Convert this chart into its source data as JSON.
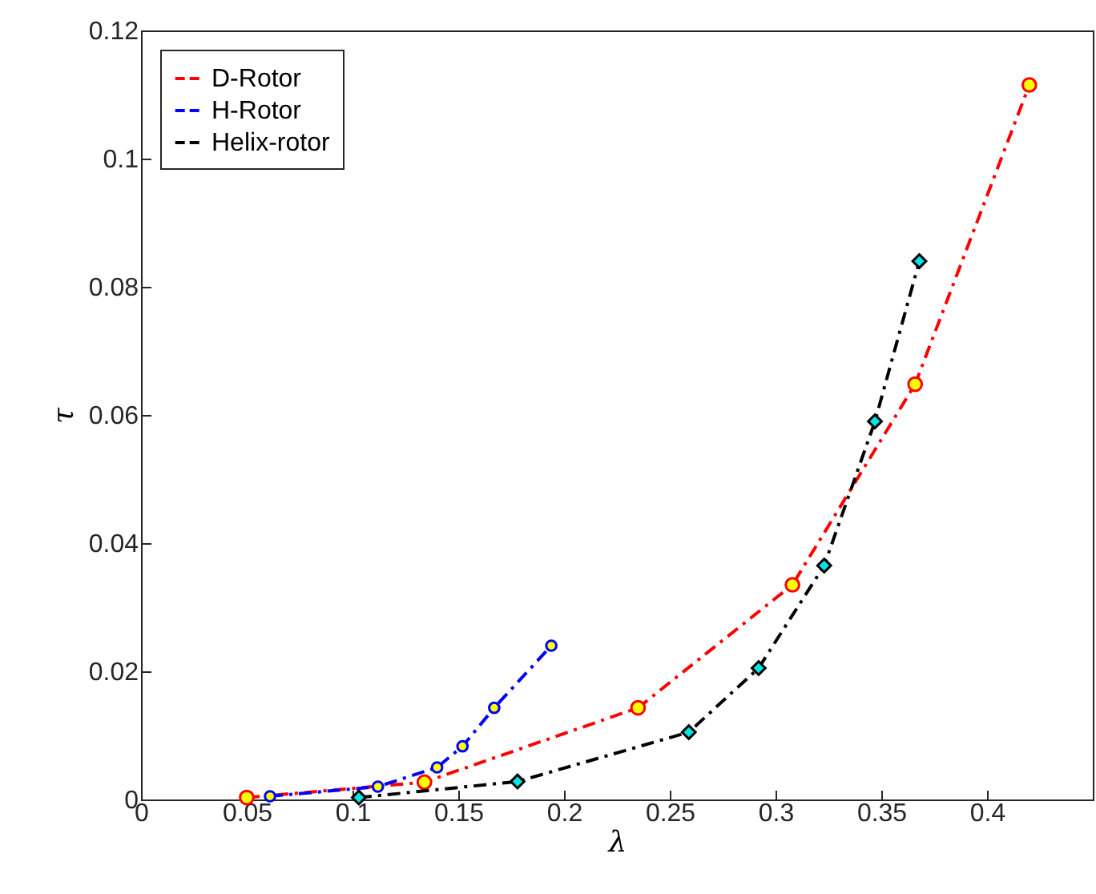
{
  "chart_data": {
    "type": "line",
    "xlabel": "λ",
    "ylabel": "τ",
    "xlim": [
      0,
      0.45
    ],
    "xticks": [
      0,
      0.05,
      0.1,
      0.15,
      0.2,
      0.25,
      0.3,
      0.35,
      0.4
    ],
    "ylim": [
      0,
      0.12
    ],
    "yticks": [
      0,
      0.02,
      0.04,
      0.06,
      0.08,
      0.1,
      0.12
    ],
    "legend": "top left",
    "marker": "circle",
    "line_style": "dashed",
    "series": [
      {
        "name": "D-Rotor",
        "color": "#ff0000",
        "x": [
          0.05,
          0.134,
          0.235,
          0.308,
          0.366,
          0.42
        ],
        "values": [
          0.0003,
          0.0027,
          0.0143,
          0.0335,
          0.0648,
          0.1115
        ]
      },
      {
        "name": "H-Rotor",
        "color": "#0000ff",
        "x": [
          0.061,
          0.112,
          0.14,
          0.152,
          0.167,
          0.194
        ],
        "values": [
          0.0005,
          0.002,
          0.005,
          0.0083,
          0.0143,
          0.024
        ]
      },
      {
        "name": "Helix-rotor",
        "color": "#000000",
        "marker": "diamond",
        "x": [
          0.103,
          0.178,
          0.259,
          0.292,
          0.323,
          0.347,
          0.368
        ],
        "values": [
          0.0003,
          0.0028,
          0.0105,
          0.0205,
          0.0365,
          0.059,
          0.084
        ]
      }
    ]
  }
}
